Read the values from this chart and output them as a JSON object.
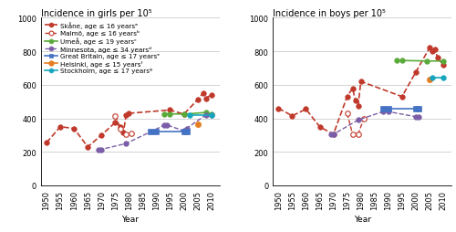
{
  "girls": {
    "skane": {
      "years": [
        1950,
        1955,
        1960,
        1965,
        1970,
        1975,
        1977,
        1978,
        1979,
        1980,
        1995,
        2000,
        2005,
        2007,
        2008,
        2010
      ],
      "values": [
        255,
        350,
        340,
        230,
        300,
        375,
        350,
        315,
        420,
        430,
        450,
        425,
        510,
        550,
        520,
        540
      ],
      "color": "#c0392b",
      "linestyle": "--",
      "marker": "o",
      "markersize": 4.0,
      "linewidth": 1.2,
      "label": "Skåne, age ≤ 16 yearsᵃ",
      "filled": true
    },
    "malmo": {
      "years": [
        1975,
        1977,
        1979,
        1981
      ],
      "values": [
        415,
        340,
        305,
        310
      ],
      "color": "#c0392b",
      "linestyle": "--",
      "marker": "o",
      "markersize": 4.0,
      "linewidth": 1.0,
      "label": "Malmö, age ≤ 16 yearsᵇ",
      "filled": false
    },
    "umea": {
      "years": [
        1993,
        1995,
        2000,
        2008,
        2010
      ],
      "values": [
        427,
        427,
        425,
        435,
        425
      ],
      "color": "#5aaa3a",
      "linestyle": "-",
      "marker": "o",
      "markersize": 4.0,
      "linewidth": 1.2,
      "label": "Umeå, age ≤ 19 yearsᶜ",
      "filled": true
    },
    "minnesota": {
      "years": [
        1969,
        1970,
        1979,
        1993,
        1994,
        2000,
        2001,
        2008,
        2010
      ],
      "values": [
        215,
        215,
        250,
        360,
        360,
        325,
        340,
        420,
        420
      ],
      "color": "#7b5ea7",
      "linestyle": "--",
      "marker": "o",
      "markersize": 4.0,
      "linewidth": 1.0,
      "label": "Minnesota, age ≤ 34 yearsᵈ",
      "filled": true
    },
    "great_britain": {
      "years": [
        1988,
        1990,
        2000,
        2001
      ],
      "values": [
        320,
        320,
        320,
        320
      ],
      "color": "#4472c4",
      "linestyle": "-",
      "marker": "s",
      "markersize": 4.0,
      "linewidth": 1.2,
      "label": "Great Britain, age ≤ 17 yearsᵉ",
      "filled": true
    },
    "helsinki": {
      "years": [
        2005
      ],
      "values": [
        365
      ],
      "color": "#e67e22",
      "linestyle": "-",
      "marker": "o",
      "markersize": 4.5,
      "linewidth": 1.2,
      "label": "Helsinki, age ≤ 15 yearsᶠ",
      "filled": true
    },
    "stockholm": {
      "years": [
        2002,
        2010
      ],
      "values": [
        420,
        420
      ],
      "color": "#17a5be",
      "linestyle": "-",
      "marker": "o",
      "markersize": 4.0,
      "linewidth": 1.2,
      "label": "Stockholm, age ≤ 17 yearsᵍ",
      "filled": true
    }
  },
  "boys": {
    "skane": {
      "years": [
        1950,
        1955,
        1960,
        1965,
        1970,
        1975,
        1977,
        1978,
        1979,
        1980,
        1995,
        2000,
        2005,
        2006,
        2007,
        2008,
        2010
      ],
      "values": [
        460,
        415,
        455,
        350,
        305,
        530,
        580,
        505,
        475,
        620,
        530,
        675,
        820,
        800,
        810,
        760,
        720
      ],
      "color": "#c0392b",
      "linestyle": "--",
      "marker": "o",
      "markersize": 4.0,
      "linewidth": 1.2,
      "label": "Skåne, age ≤ 16 yearsᵃ",
      "filled": true
    },
    "malmo": {
      "years": [
        1975,
        1977,
        1979,
        1981
      ],
      "values": [
        430,
        305,
        305,
        395
      ],
      "color": "#c0392b",
      "linestyle": "--",
      "marker": "o",
      "markersize": 4.0,
      "linewidth": 1.0,
      "label": "Malmö, age ≤ 16 yearsᵇ",
      "filled": false
    },
    "umea": {
      "years": [
        1993,
        1995,
        2004,
        2010
      ],
      "values": [
        745,
        745,
        742,
        742
      ],
      "color": "#5aaa3a",
      "linestyle": "-",
      "marker": "o",
      "markersize": 4.0,
      "linewidth": 1.2,
      "label": "Umeå, age ≤ 19 yearsᶜ",
      "filled": true
    },
    "minnesota": {
      "years": [
        1969,
        1970,
        1979,
        1988,
        1990,
        2000,
        2001
      ],
      "values": [
        305,
        305,
        390,
        440,
        440,
        410,
        410
      ],
      "color": "#7b5ea7",
      "linestyle": "--",
      "marker": "o",
      "markersize": 4.0,
      "linewidth": 1.0,
      "label": "Minnesota, age ≤ 34 yearsᵈ",
      "filled": true
    },
    "great_britain": {
      "years": [
        1988,
        1990,
        2000,
        2001
      ],
      "values": [
        460,
        460,
        460,
        460
      ],
      "color": "#4472c4",
      "linestyle": "-",
      "marker": "s",
      "markersize": 4.0,
      "linewidth": 1.2,
      "label": "Great Britain, age ≤ 17 yearsᵉ",
      "filled": true
    },
    "helsinki": {
      "years": [
        2005
      ],
      "values": [
        630
      ],
      "color": "#e67e22",
      "linestyle": "-",
      "marker": "o",
      "markersize": 4.5,
      "linewidth": 1.2,
      "label": "Helsinki, age ≤ 15 yearsᶠ",
      "filled": true
    },
    "stockholm": {
      "years": [
        2006,
        2010
      ],
      "values": [
        645,
        645
      ],
      "color": "#17a5be",
      "linestyle": "-",
      "marker": "o",
      "markersize": 4.0,
      "linewidth": 1.2,
      "label": "Stockholm, age ≤ 17 yearsᵍ",
      "filled": true
    }
  },
  "ylim": [
    0,
    1000
  ],
  "yticks": [
    0,
    200,
    400,
    600,
    800,
    1000
  ],
  "xlim": [
    1948,
    2013
  ],
  "xticks": [
    1950,
    1955,
    1960,
    1965,
    1970,
    1975,
    1980,
    1985,
    1990,
    1995,
    2000,
    2005,
    2010
  ],
  "xlabel": "Year",
  "title_girls": "Incidence in girls per 10⁵",
  "title_boys": "Incidence in boys per 10⁵",
  "legend_fontsize": 5.2,
  "axis_fontsize": 6.5,
  "title_fontsize": 7.0,
  "background_color": "#ffffff",
  "grid_color": "#cccccc"
}
